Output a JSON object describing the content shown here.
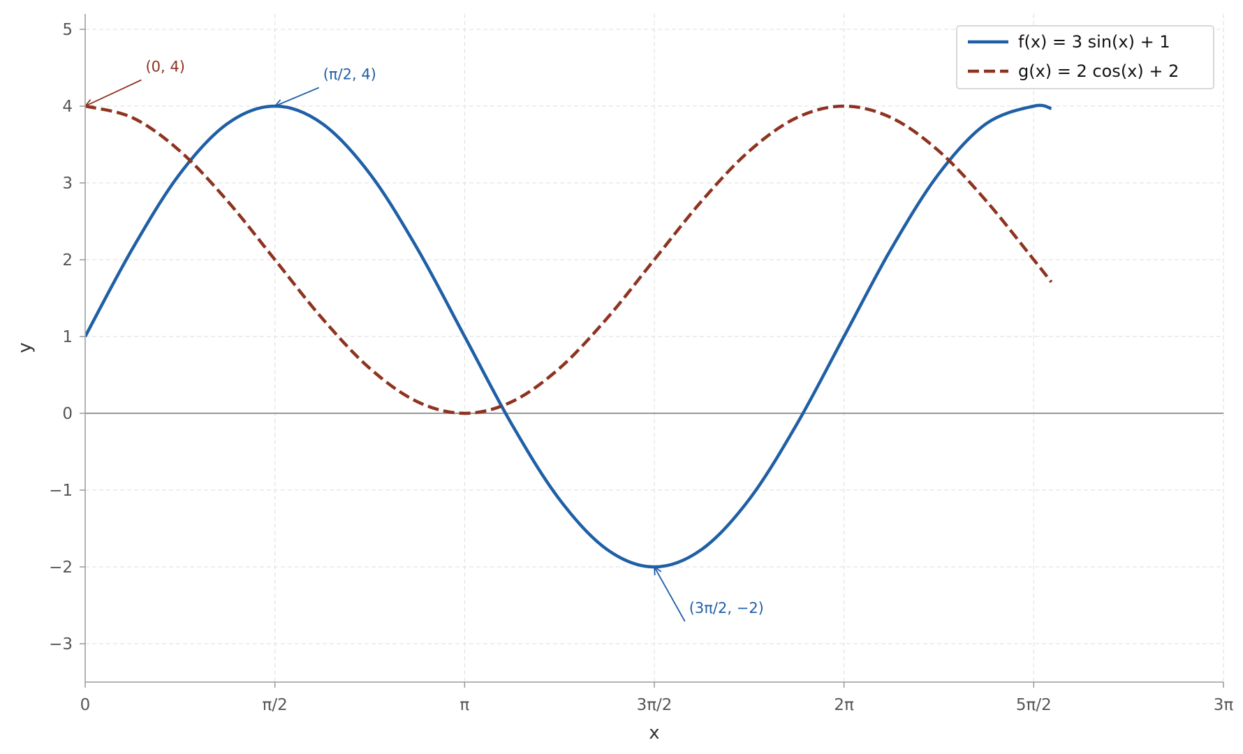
{
  "chart_data": {
    "type": "line",
    "title": "",
    "xlabel": "x",
    "ylabel": "y",
    "xlim": [
      0,
      9.42478
    ],
    "ylim": [
      -3.5,
      5.2
    ],
    "grid": true,
    "legend_position": "top-right",
    "x_ticks": [
      {
        "value": 0,
        "label": "0"
      },
      {
        "value": 1.5708,
        "label": "π/2"
      },
      {
        "value": 3.14159,
        "label": "π"
      },
      {
        "value": 4.71239,
        "label": "3π/2"
      },
      {
        "value": 6.28319,
        "label": "2π"
      },
      {
        "value": 7.85398,
        "label": "5π/2"
      },
      {
        "value": 9.42478,
        "label": "3π"
      }
    ],
    "y_ticks": [
      {
        "value": -3,
        "label": "−3"
      },
      {
        "value": -2,
        "label": "−2"
      },
      {
        "value": -1,
        "label": "−1"
      },
      {
        "value": 0,
        "label": "0"
      },
      {
        "value": 1,
        "label": "1"
      },
      {
        "value": 2,
        "label": "2"
      },
      {
        "value": 3,
        "label": "3"
      },
      {
        "value": 4,
        "label": "4"
      },
      {
        "value": 5,
        "label": "5"
      }
    ],
    "series": [
      {
        "name": "f(x) = 3 sin(x) + 1",
        "color": "#1f5fa6",
        "dash": "solid",
        "x": [
          0.0,
          0.393,
          0.785,
          1.178,
          1.571,
          1.963,
          2.356,
          2.749,
          3.142,
          3.534,
          3.927,
          4.32,
          4.712,
          5.105,
          5.498,
          5.89,
          6.283,
          6.676,
          7.069,
          7.461,
          7.854,
          8.0
        ],
        "y": [
          1.0,
          2.148,
          3.121,
          3.772,
          4.0,
          3.772,
          3.121,
          2.148,
          1.0,
          -0.148,
          -1.121,
          -1.772,
          -2.0,
          -1.772,
          -1.121,
          -0.148,
          1.0,
          2.148,
          3.121,
          3.772,
          4.0,
          3.969
        ]
      },
      {
        "name": "g(x) = 2 cos(x) + 2",
        "color": "#8e3320",
        "dash": "dashed",
        "x": [
          0.0,
          0.393,
          0.785,
          1.178,
          1.571,
          1.963,
          2.356,
          2.749,
          3.142,
          3.534,
          3.927,
          4.32,
          4.712,
          5.105,
          5.498,
          5.89,
          6.283,
          6.676,
          7.069,
          7.461,
          7.854,
          8.0
        ],
        "y": [
          4.0,
          3.848,
          3.414,
          2.765,
          2.0,
          1.235,
          0.586,
          0.152,
          0.0,
          0.152,
          0.586,
          1.235,
          2.0,
          2.765,
          3.414,
          3.848,
          4.0,
          3.848,
          3.414,
          2.765,
          2.0,
          1.709
        ]
      }
    ],
    "annotations": [
      {
        "text": "(0, 4)",
        "x": 0,
        "y": 4,
        "text_x": 0.5,
        "text_y": 4.45,
        "color": "#8e3320"
      },
      {
        "text": "(π/2, 4)",
        "x": 1.5708,
        "y": 4,
        "text_x": 1.97,
        "text_y": 4.35,
        "color": "#1f5fa6"
      },
      {
        "text": "(3π/2, −2)",
        "x": 4.71239,
        "y": -2,
        "text_x": 5.0,
        "text_y": -2.6,
        "color": "#1f5fa6"
      }
    ]
  }
}
